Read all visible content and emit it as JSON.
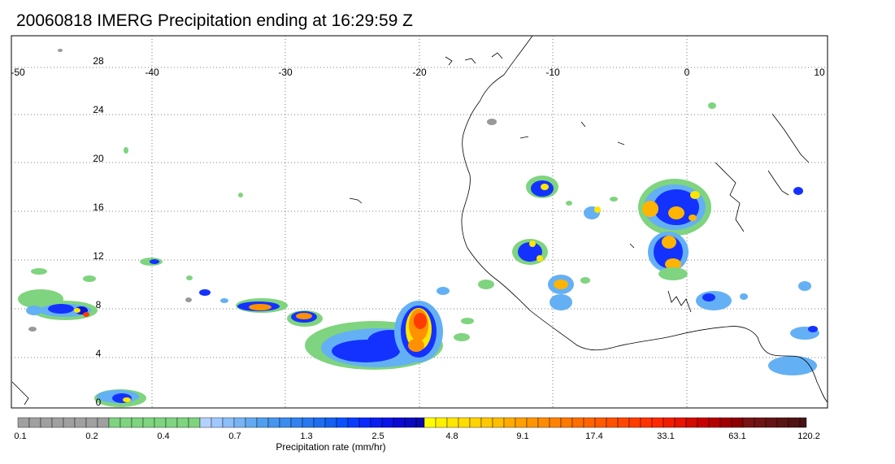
{
  "title": "20060818 IMERG Precipitation ending at 16:29:59 Z",
  "map": {
    "lon_labels": [
      "-50",
      "-40",
      "-30",
      "-20",
      "-10",
      "0",
      "10"
    ],
    "lat_labels": [
      "28",
      "24",
      "20",
      "16",
      "12",
      "8",
      "4",
      "0"
    ]
  },
  "colorbar": {
    "title": "Precipitation rate (mm/hr)",
    "labels": [
      "0.1",
      "0.2",
      "0.4",
      "0.7",
      "1.3",
      "2.5",
      "4.8",
      "9.1",
      "17.4",
      "33.1",
      "63.1",
      "120.2"
    ]
  }
}
